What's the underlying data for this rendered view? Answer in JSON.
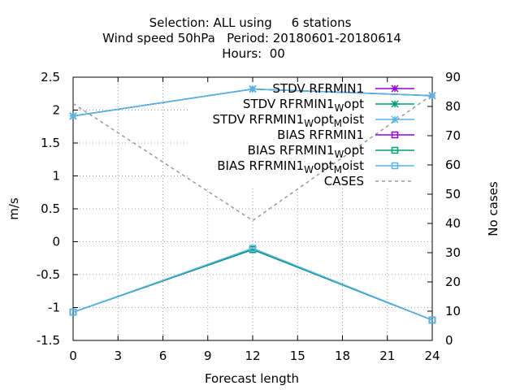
{
  "chart_data": {
    "type": "line",
    "title_lines": [
      "Selection: ALL using     6 stations",
      "Wind speed 50hPa   Period: 20180601-20180614",
      "Hours:  00"
    ],
    "xlabel": "Forecast length",
    "ylabel": "m/s",
    "y2label": "No cases",
    "xlim": [
      0,
      24
    ],
    "ylim": [
      -1.5,
      2.5
    ],
    "y2lim": [
      0,
      90
    ],
    "x_ticks": [
      0,
      3,
      6,
      9,
      12,
      15,
      18,
      21,
      24
    ],
    "y_ticks": [
      "-1.5",
      "-1",
      "-0.5",
      "0",
      "0.5",
      "1",
      "1.5",
      "2",
      "2.5"
    ],
    "y2_ticks": [
      "0",
      "10",
      "20",
      "30",
      "40",
      "50",
      "60",
      "70",
      "80",
      "90"
    ],
    "grid": true,
    "legend_position": "top-right",
    "series": [
      {
        "name_main": "STDV RFRMIN1",
        "name_sub1": "",
        "name_mid": "",
        "name_sub2": "",
        "name_tail": "",
        "color": "#9400d3",
        "marker": "star",
        "dash": false,
        "axis": "y1",
        "x": [
          0,
          12,
          24
        ],
        "values": [
          1.91,
          2.32,
          2.22
        ]
      },
      {
        "name_main": "STDV RFRMIN1",
        "name_sub1": "W",
        "name_mid": "opt",
        "name_sub2": "",
        "name_tail": "",
        "color": "#009e73",
        "marker": "star",
        "dash": false,
        "axis": "y1",
        "x": [
          0,
          12,
          24
        ],
        "values": [
          1.91,
          2.32,
          2.22
        ]
      },
      {
        "name_main": "STDV RFRMIN1",
        "name_sub1": "W",
        "name_mid": "opt",
        "name_sub2": "M",
        "name_tail": "oist",
        "color": "#56b4e9",
        "marker": "star",
        "dash": false,
        "axis": "y1",
        "x": [
          0,
          12,
          24
        ],
        "values": [
          1.91,
          2.32,
          2.22
        ]
      },
      {
        "name_main": "BIAS RFRMIN1",
        "name_sub1": "",
        "name_mid": "",
        "name_sub2": "",
        "name_tail": "",
        "color": "#9400d3",
        "marker": "square",
        "dash": false,
        "axis": "y1",
        "x": [
          0,
          12,
          24
        ],
        "values": [
          -1.07,
          -0.12,
          -1.19
        ]
      },
      {
        "name_main": "BIAS RFRMIN1",
        "name_sub1": "W",
        "name_mid": "opt",
        "name_sub2": "",
        "name_tail": "",
        "color": "#009e73",
        "marker": "square",
        "dash": false,
        "axis": "y1",
        "x": [
          0,
          12,
          24
        ],
        "values": [
          -1.07,
          -0.12,
          -1.19
        ]
      },
      {
        "name_main": "BIAS RFRMIN1",
        "name_sub1": "W",
        "name_mid": "opt",
        "name_sub2": "M",
        "name_tail": "oist",
        "color": "#56b4e9",
        "marker": "square",
        "dash": false,
        "axis": "y1",
        "x": [
          0,
          12,
          24
        ],
        "values": [
          -1.07,
          -0.1,
          -1.19
        ]
      },
      {
        "name_main": "CASES",
        "name_sub1": "",
        "name_mid": "",
        "name_sub2": "",
        "name_tail": "",
        "color": "#999999",
        "marker": "none",
        "dash": true,
        "axis": "y2",
        "x": [
          0,
          12,
          24
        ],
        "values": [
          81,
          41,
          84
        ]
      }
    ]
  }
}
